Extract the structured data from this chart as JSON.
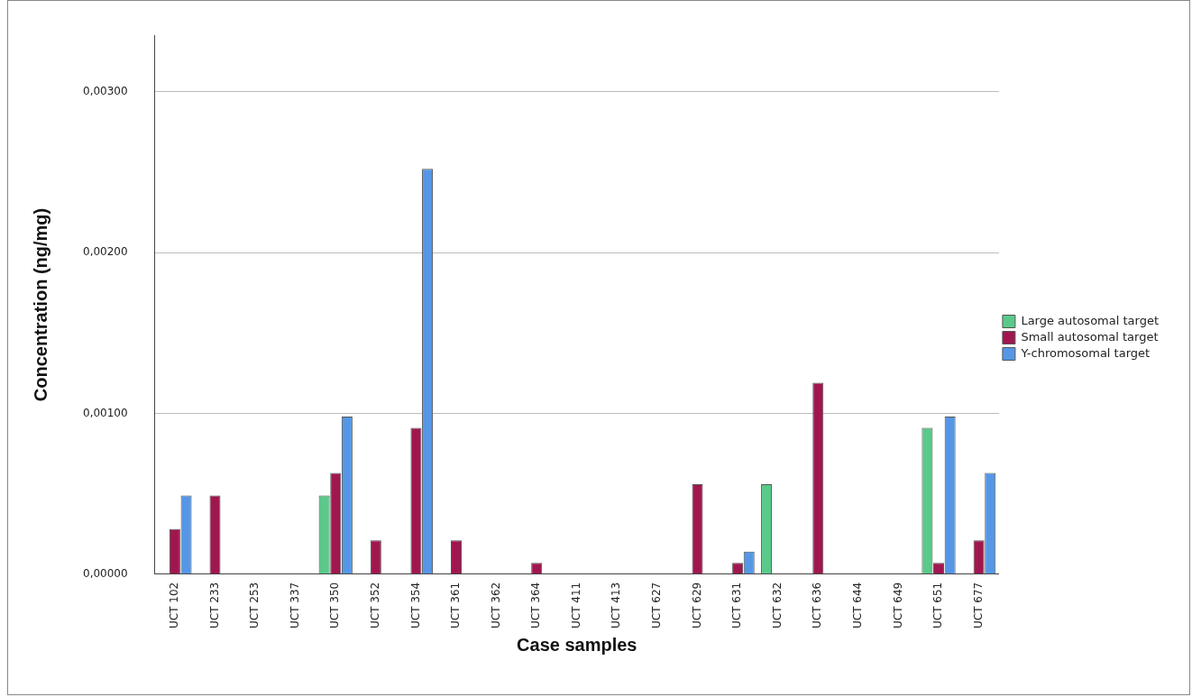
{
  "chart_data": {
    "type": "bar",
    "xlabel": "Case samples",
    "ylabel": "Concentration (ng/mg)",
    "categories": [
      "UCT 102",
      "UCT 233",
      "UCT 253",
      "UCT 337",
      "UCT 350",
      "UCT 352",
      "UCT 354",
      "UCT 361",
      "UCT 362",
      "UCT 364",
      "UCT 411",
      "UCT 413",
      "UCT 627",
      "UCT 629",
      "UCT 631",
      "UCT 632",
      "UCT 636",
      "UCT 644",
      "UCT 649",
      "UCT 651",
      "UCT 677"
    ],
    "series": [
      {
        "name": "Large autosomal target",
        "color": "#5ac98a",
        "values": [
          0,
          0,
          0,
          0,
          0.00049,
          0,
          0,
          0,
          0,
          0,
          0,
          0,
          0,
          0,
          0,
          0.00056,
          0,
          0,
          0,
          0.00091,
          0
        ]
      },
      {
        "name": "Small autosomal target",
        "color": "#a0174f",
        "values": [
          0.00028,
          0.00049,
          0,
          0,
          0.00063,
          0.00021,
          0.00091,
          0.00021,
          0,
          7e-05,
          0,
          0,
          0,
          0.00056,
          7e-05,
          0,
          0.00119,
          0,
          0,
          7e-05,
          0.00021
        ]
      },
      {
        "name": "Y-chromosomal target",
        "color": "#5597e6",
        "values": [
          0.00049,
          0,
          0,
          0,
          0.00098,
          0,
          0.00252,
          0,
          0,
          0,
          0,
          0,
          0,
          0,
          0.00014,
          0,
          0,
          0,
          0,
          0.00098,
          0.00063
        ]
      }
    ],
    "ylim": [
      0,
      0.00335
    ],
    "yticks": [
      {
        "value": 0,
        "label": "0,00000"
      },
      {
        "value": 0.001,
        "label": "0,00100"
      },
      {
        "value": 0.002,
        "label": "0,00200"
      },
      {
        "value": 0.003,
        "label": "0,00300"
      }
    ],
    "grid": "y",
    "legend": "right"
  }
}
